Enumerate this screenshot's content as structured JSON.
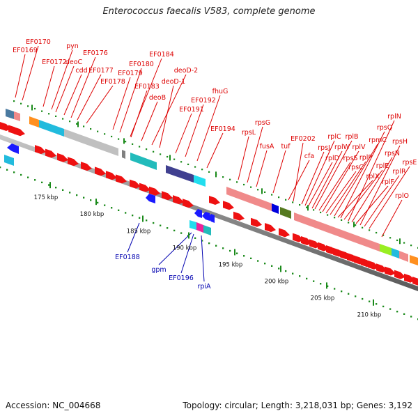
{
  "title": "Enterococcus faecalis V583, complete genome",
  "footer": {
    "accession": "Accession: NC_004668",
    "info": "Topology: circular; Length: 3,218,031 bp; Genes: 3,192"
  },
  "colors": {
    "forward_label": "#dd0000",
    "reverse_label": "#0000b0",
    "forward_arrow": "#ee1111",
    "reverse_arrow": "#1a1aff",
    "backbone": "#9a9a9a",
    "tick": "#1a8a1a"
  },
  "kbp_labels": [
    "175 kbp",
    "180 kbp",
    "185 kbp",
    "190 kbp",
    "195 kbp",
    "200 kbp",
    "205 kbp",
    "210 kbp"
  ],
  "forward_genes": [
    "EF0169",
    "EF0170",
    "EF0172",
    "pyn",
    "deoC",
    "cdd",
    "EF0176",
    "EF0177",
    "EF0178",
    "EF0179",
    "EF0180",
    "EF0184",
    "EF0183",
    "deoB",
    "deoD-2",
    "deoD-1",
    "EF0191",
    "EF0192",
    "fhuG",
    "EF0194",
    "rpsL",
    "rpsG",
    "fusA",
    "tuf",
    "cfa",
    "EF0202",
    "rpsJ",
    "rplC",
    "rplD",
    "rplW",
    "rplB",
    "rpsS",
    "rplV",
    "rpsC",
    "rplP",
    "rpmC",
    "rplX",
    "rpsQ",
    "rplE",
    "rplN",
    "rpsN",
    "rplF",
    "rpsH",
    "rplR",
    "rpsE",
    "rplO"
  ],
  "reverse_genes": [
    "EF0188",
    "gpm",
    "EF0196",
    "rpiA"
  ]
}
